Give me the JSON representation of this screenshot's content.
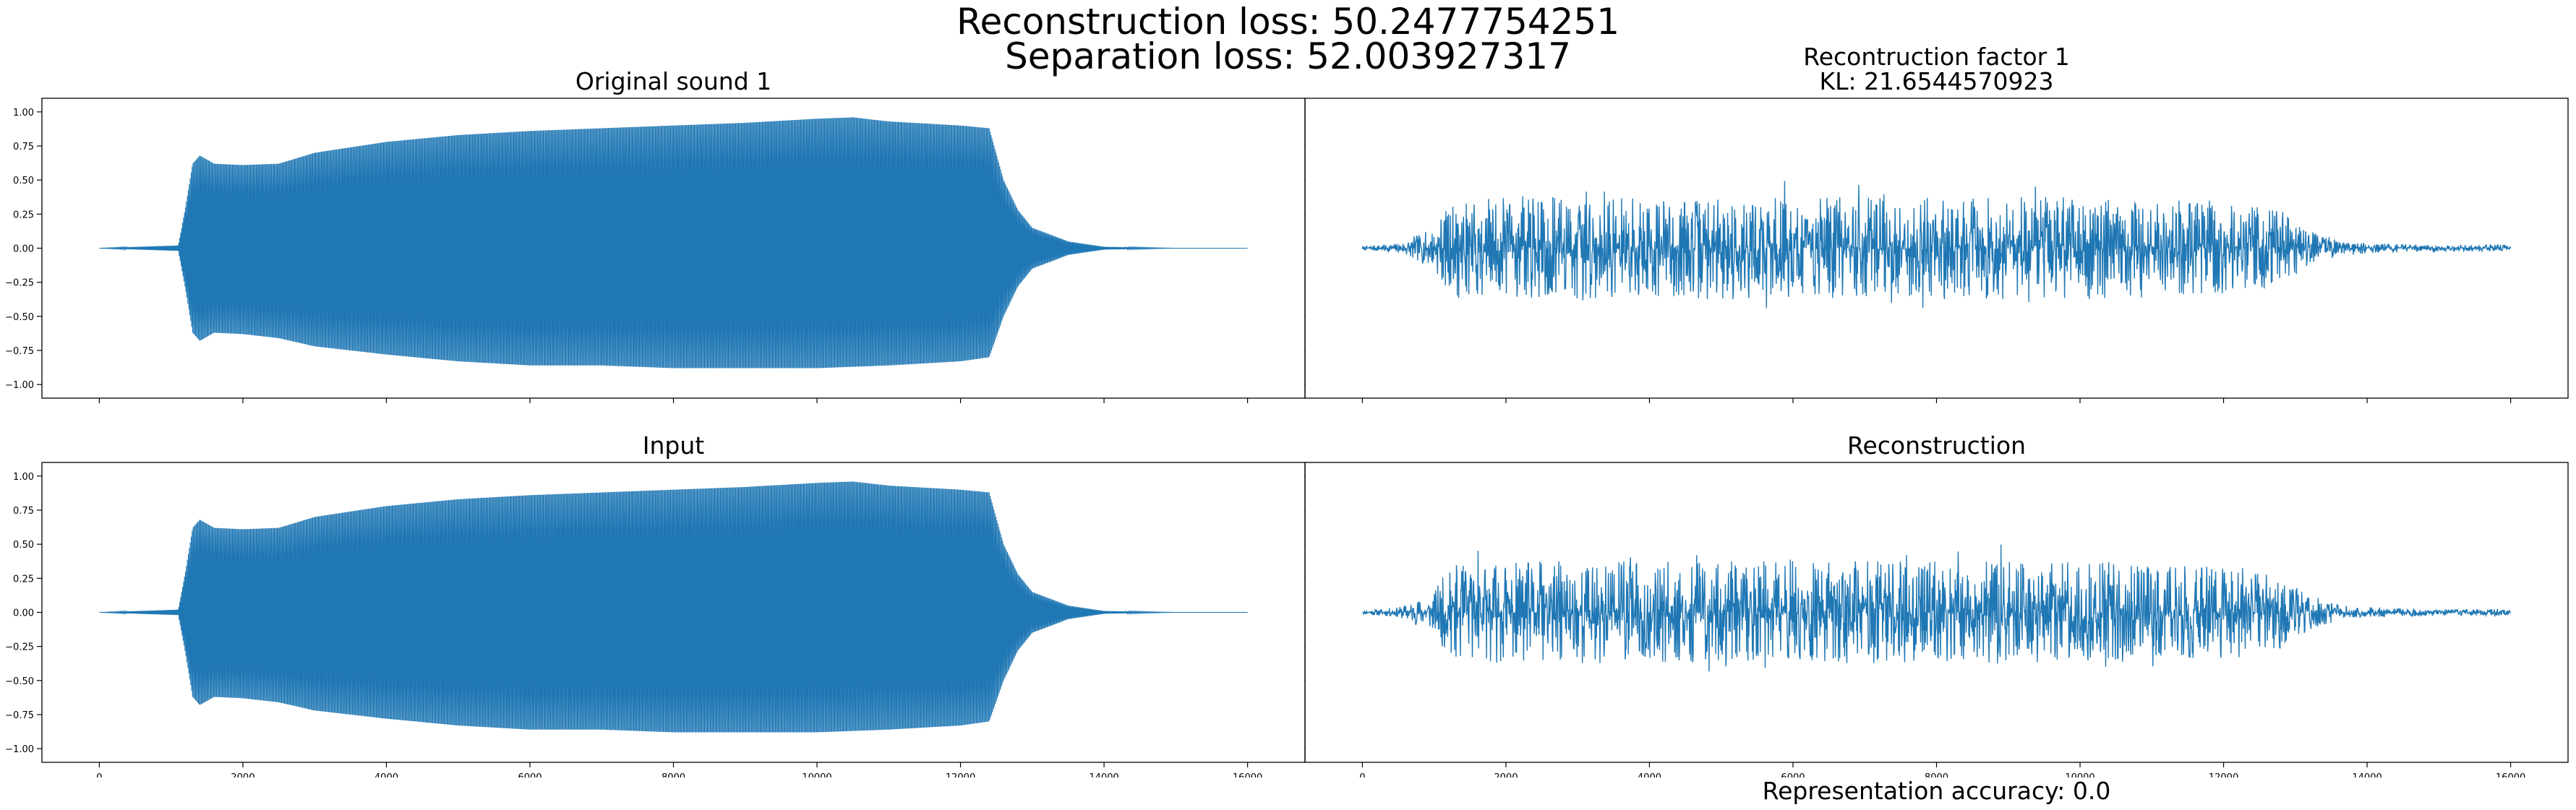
{
  "figure": {
    "suptitle_line1": "Reconstruction loss: 50.2477754251",
    "suptitle_line2": "Separation loss: 52.003927317",
    "footnote": "Representation accuracy: 0.0",
    "line_color": "#1f77b4"
  },
  "chart_data": [
    {
      "type": "line",
      "id": "original",
      "title": "Original sound 1",
      "subtitle": "",
      "xlim": [
        -800,
        16800
      ],
      "ylim": [
        -1.1,
        1.1
      ],
      "xticks": [
        0,
        2000,
        4000,
        6000,
        8000,
        10000,
        12000,
        14000,
        16000
      ],
      "xtick_labels_visible": false,
      "yticks": [
        -1.0,
        -0.75,
        -0.5,
        -0.25,
        0.0,
        0.25,
        0.5,
        0.75,
        1.0
      ],
      "ytick_labels": [
        "−1.00",
        "−0.75",
        "−0.50",
        "−0.25",
        "0.00",
        "0.25",
        "0.50",
        "0.75",
        "1.00"
      ],
      "envelope": {
        "x": [
          0,
          1100,
          1200,
          1300,
          1400,
          1600,
          2000,
          2500,
          3000,
          4000,
          5000,
          6000,
          7000,
          8000,
          9000,
          10000,
          10500,
          11000,
          12000,
          12400,
          12600,
          12800,
          13000,
          13500,
          14000,
          15000,
          16000
        ],
        "upper": [
          0.0,
          0.02,
          0.3,
          0.62,
          0.68,
          0.62,
          0.61,
          0.62,
          0.7,
          0.78,
          0.83,
          0.86,
          0.88,
          0.9,
          0.92,
          0.95,
          0.96,
          0.93,
          0.9,
          0.88,
          0.5,
          0.28,
          0.15,
          0.05,
          0.01,
          0.0,
          0.0
        ],
        "lower": [
          0.0,
          -0.02,
          -0.3,
          -0.62,
          -0.68,
          -0.62,
          -0.63,
          -0.66,
          -0.72,
          -0.78,
          -0.83,
          -0.86,
          -0.86,
          -0.88,
          -0.88,
          -0.88,
          -0.87,
          -0.86,
          -0.83,
          -0.8,
          -0.5,
          -0.28,
          -0.15,
          -0.05,
          -0.01,
          0.0,
          0.0
        ]
      }
    },
    {
      "type": "line",
      "id": "recon-factor",
      "title": "Recontruction factor 1",
      "subtitle": "KL: 21.6544570923",
      "xlim": [
        -800,
        16800
      ],
      "ylim": [
        -1.1,
        1.1
      ],
      "xticks": [
        0,
        2000,
        4000,
        6000,
        8000,
        10000,
        12000,
        14000,
        16000
      ],
      "xtick_labels_visible": false,
      "yticks": [
        -1.0,
        -0.75,
        -0.5,
        -0.25,
        0.0,
        0.25,
        0.5,
        0.75,
        1.0
      ],
      "ytick_labels": [],
      "envelope": {
        "x": [
          0,
          500,
          1000,
          1100,
          1300,
          2000,
          4000,
          6000,
          8000,
          10000,
          12000,
          12800,
          13200,
          13600,
          14000,
          15000,
          16000
        ],
        "upper": [
          0.01,
          0.03,
          0.12,
          0.2,
          0.28,
          0.3,
          0.3,
          0.3,
          0.3,
          0.3,
          0.28,
          0.22,
          0.1,
          0.05,
          0.03,
          0.02,
          0.02
        ],
        "lower": [
          -0.01,
          -0.03,
          -0.12,
          -0.2,
          -0.28,
          -0.3,
          -0.3,
          -0.3,
          -0.3,
          -0.3,
          -0.28,
          -0.22,
          -0.1,
          -0.05,
          -0.03,
          -0.02,
          -0.02
        ],
        "peak": 0.5,
        "trough": -0.45
      }
    },
    {
      "type": "line",
      "id": "input",
      "title": "Input",
      "subtitle": "",
      "xlim": [
        -800,
        16800
      ],
      "ylim": [
        -1.1,
        1.1
      ],
      "xticks": [
        0,
        2000,
        4000,
        6000,
        8000,
        10000,
        12000,
        14000,
        16000
      ],
      "xtick_labels": [
        "0",
        "2000",
        "4000",
        "6000",
        "8000",
        "10000",
        "12000",
        "14000",
        "16000"
      ],
      "xtick_labels_visible": true,
      "yticks": [
        -1.0,
        -0.75,
        -0.5,
        -0.25,
        0.0,
        0.25,
        0.5,
        0.75,
        1.0
      ],
      "ytick_labels": [
        "−1.00",
        "−0.75",
        "−0.50",
        "−0.25",
        "0.00",
        "0.25",
        "0.50",
        "0.75",
        "1.00"
      ],
      "envelope": {
        "x": [
          0,
          1100,
          1200,
          1300,
          1400,
          1600,
          2000,
          2500,
          3000,
          4000,
          5000,
          6000,
          7000,
          8000,
          9000,
          10000,
          10500,
          11000,
          12000,
          12400,
          12600,
          12800,
          13000,
          13500,
          14000,
          15000,
          16000
        ],
        "upper": [
          0.0,
          0.02,
          0.3,
          0.62,
          0.68,
          0.62,
          0.61,
          0.62,
          0.7,
          0.78,
          0.83,
          0.86,
          0.88,
          0.9,
          0.92,
          0.95,
          0.96,
          0.93,
          0.9,
          0.88,
          0.5,
          0.28,
          0.15,
          0.05,
          0.01,
          0.0,
          0.0
        ],
        "lower": [
          0.0,
          -0.02,
          -0.3,
          -0.62,
          -0.68,
          -0.62,
          -0.63,
          -0.66,
          -0.72,
          -0.78,
          -0.83,
          -0.86,
          -0.86,
          -0.88,
          -0.88,
          -0.88,
          -0.87,
          -0.86,
          -0.83,
          -0.8,
          -0.5,
          -0.28,
          -0.15,
          -0.05,
          -0.01,
          0.0,
          0.0
        ]
      }
    },
    {
      "type": "line",
      "id": "reconstruction",
      "title": "Reconstruction",
      "subtitle": "",
      "xlim": [
        -800,
        16800
      ],
      "ylim": [
        -1.1,
        1.1
      ],
      "xticks": [
        0,
        2000,
        4000,
        6000,
        8000,
        10000,
        12000,
        14000,
        16000
      ],
      "xtick_labels": [
        "0",
        "2000",
        "4000",
        "6000",
        "8000",
        "10000",
        "12000",
        "14000",
        "16000"
      ],
      "xtick_labels_visible": true,
      "yticks": [
        -1.0,
        -0.75,
        -0.5,
        -0.25,
        0.0,
        0.25,
        0.5,
        0.75,
        1.0
      ],
      "ytick_labels": [],
      "envelope": {
        "x": [
          0,
          500,
          1000,
          1100,
          1300,
          2000,
          4000,
          6000,
          8000,
          10000,
          12000,
          12800,
          13200,
          13600,
          14000,
          15000,
          16000
        ],
        "upper": [
          0.01,
          0.03,
          0.12,
          0.2,
          0.28,
          0.3,
          0.3,
          0.3,
          0.3,
          0.3,
          0.28,
          0.22,
          0.1,
          0.05,
          0.03,
          0.02,
          0.02
        ],
        "lower": [
          -0.01,
          -0.03,
          -0.12,
          -0.2,
          -0.28,
          -0.3,
          -0.3,
          -0.3,
          -0.3,
          -0.3,
          -0.28,
          -0.22,
          -0.1,
          -0.05,
          -0.03,
          -0.02,
          -0.02
        ],
        "peak": 0.5,
        "trough": -0.45
      }
    }
  ]
}
